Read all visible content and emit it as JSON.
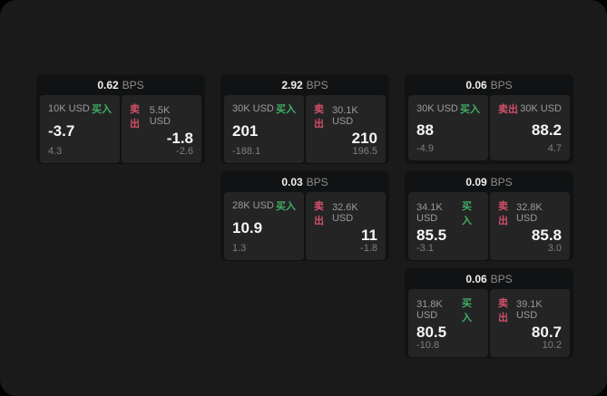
{
  "unit_label": "BPS",
  "labels": {
    "buy": "买入",
    "sell": "卖出"
  },
  "colors": {
    "buy": "#3fae63",
    "sell": "#d15068",
    "page_bg": "#1a1a1b",
    "card_bg": "#111213",
    "panel_bg": "#242425"
  },
  "cards": [
    {
      "bps": "0.62",
      "buy": {
        "amount": "10K USD",
        "value": "-3.7",
        "sub": "4.3"
      },
      "sell": {
        "amount": "5.5K USD",
        "value": "-1.8",
        "sub": "-2.6"
      }
    },
    {
      "bps": "2.92",
      "buy": {
        "amount": "30K USD",
        "value": "201",
        "sub": "-188.1"
      },
      "sell": {
        "amount": "30.1K USD",
        "value": "210",
        "sub": "196.5"
      }
    },
    {
      "bps": "0.06",
      "buy": {
        "amount": "30K USD",
        "value": "88",
        "sub": "-4.9"
      },
      "sell": {
        "amount": "30K USD",
        "value": "88.2",
        "sub": "4.7"
      }
    },
    {
      "bps": "0.03",
      "buy": {
        "amount": "28K USD",
        "value": "10.9",
        "sub": "1.3"
      },
      "sell": {
        "amount": "32.6K USD",
        "value": "11",
        "sub": "-1.8"
      }
    },
    {
      "bps": "0.09",
      "buy": {
        "amount": "34.1K USD",
        "value": "85.5",
        "sub": "-3.1"
      },
      "sell": {
        "amount": "32.8K USD",
        "value": "85.8",
        "sub": "3.0"
      }
    },
    {
      "bps": "0.06",
      "buy": {
        "amount": "31.8K USD",
        "value": "80.5",
        "sub": "-10.8"
      },
      "sell": {
        "amount": "39.1K USD",
        "value": "80.7",
        "sub": "10.2"
      }
    }
  ]
}
